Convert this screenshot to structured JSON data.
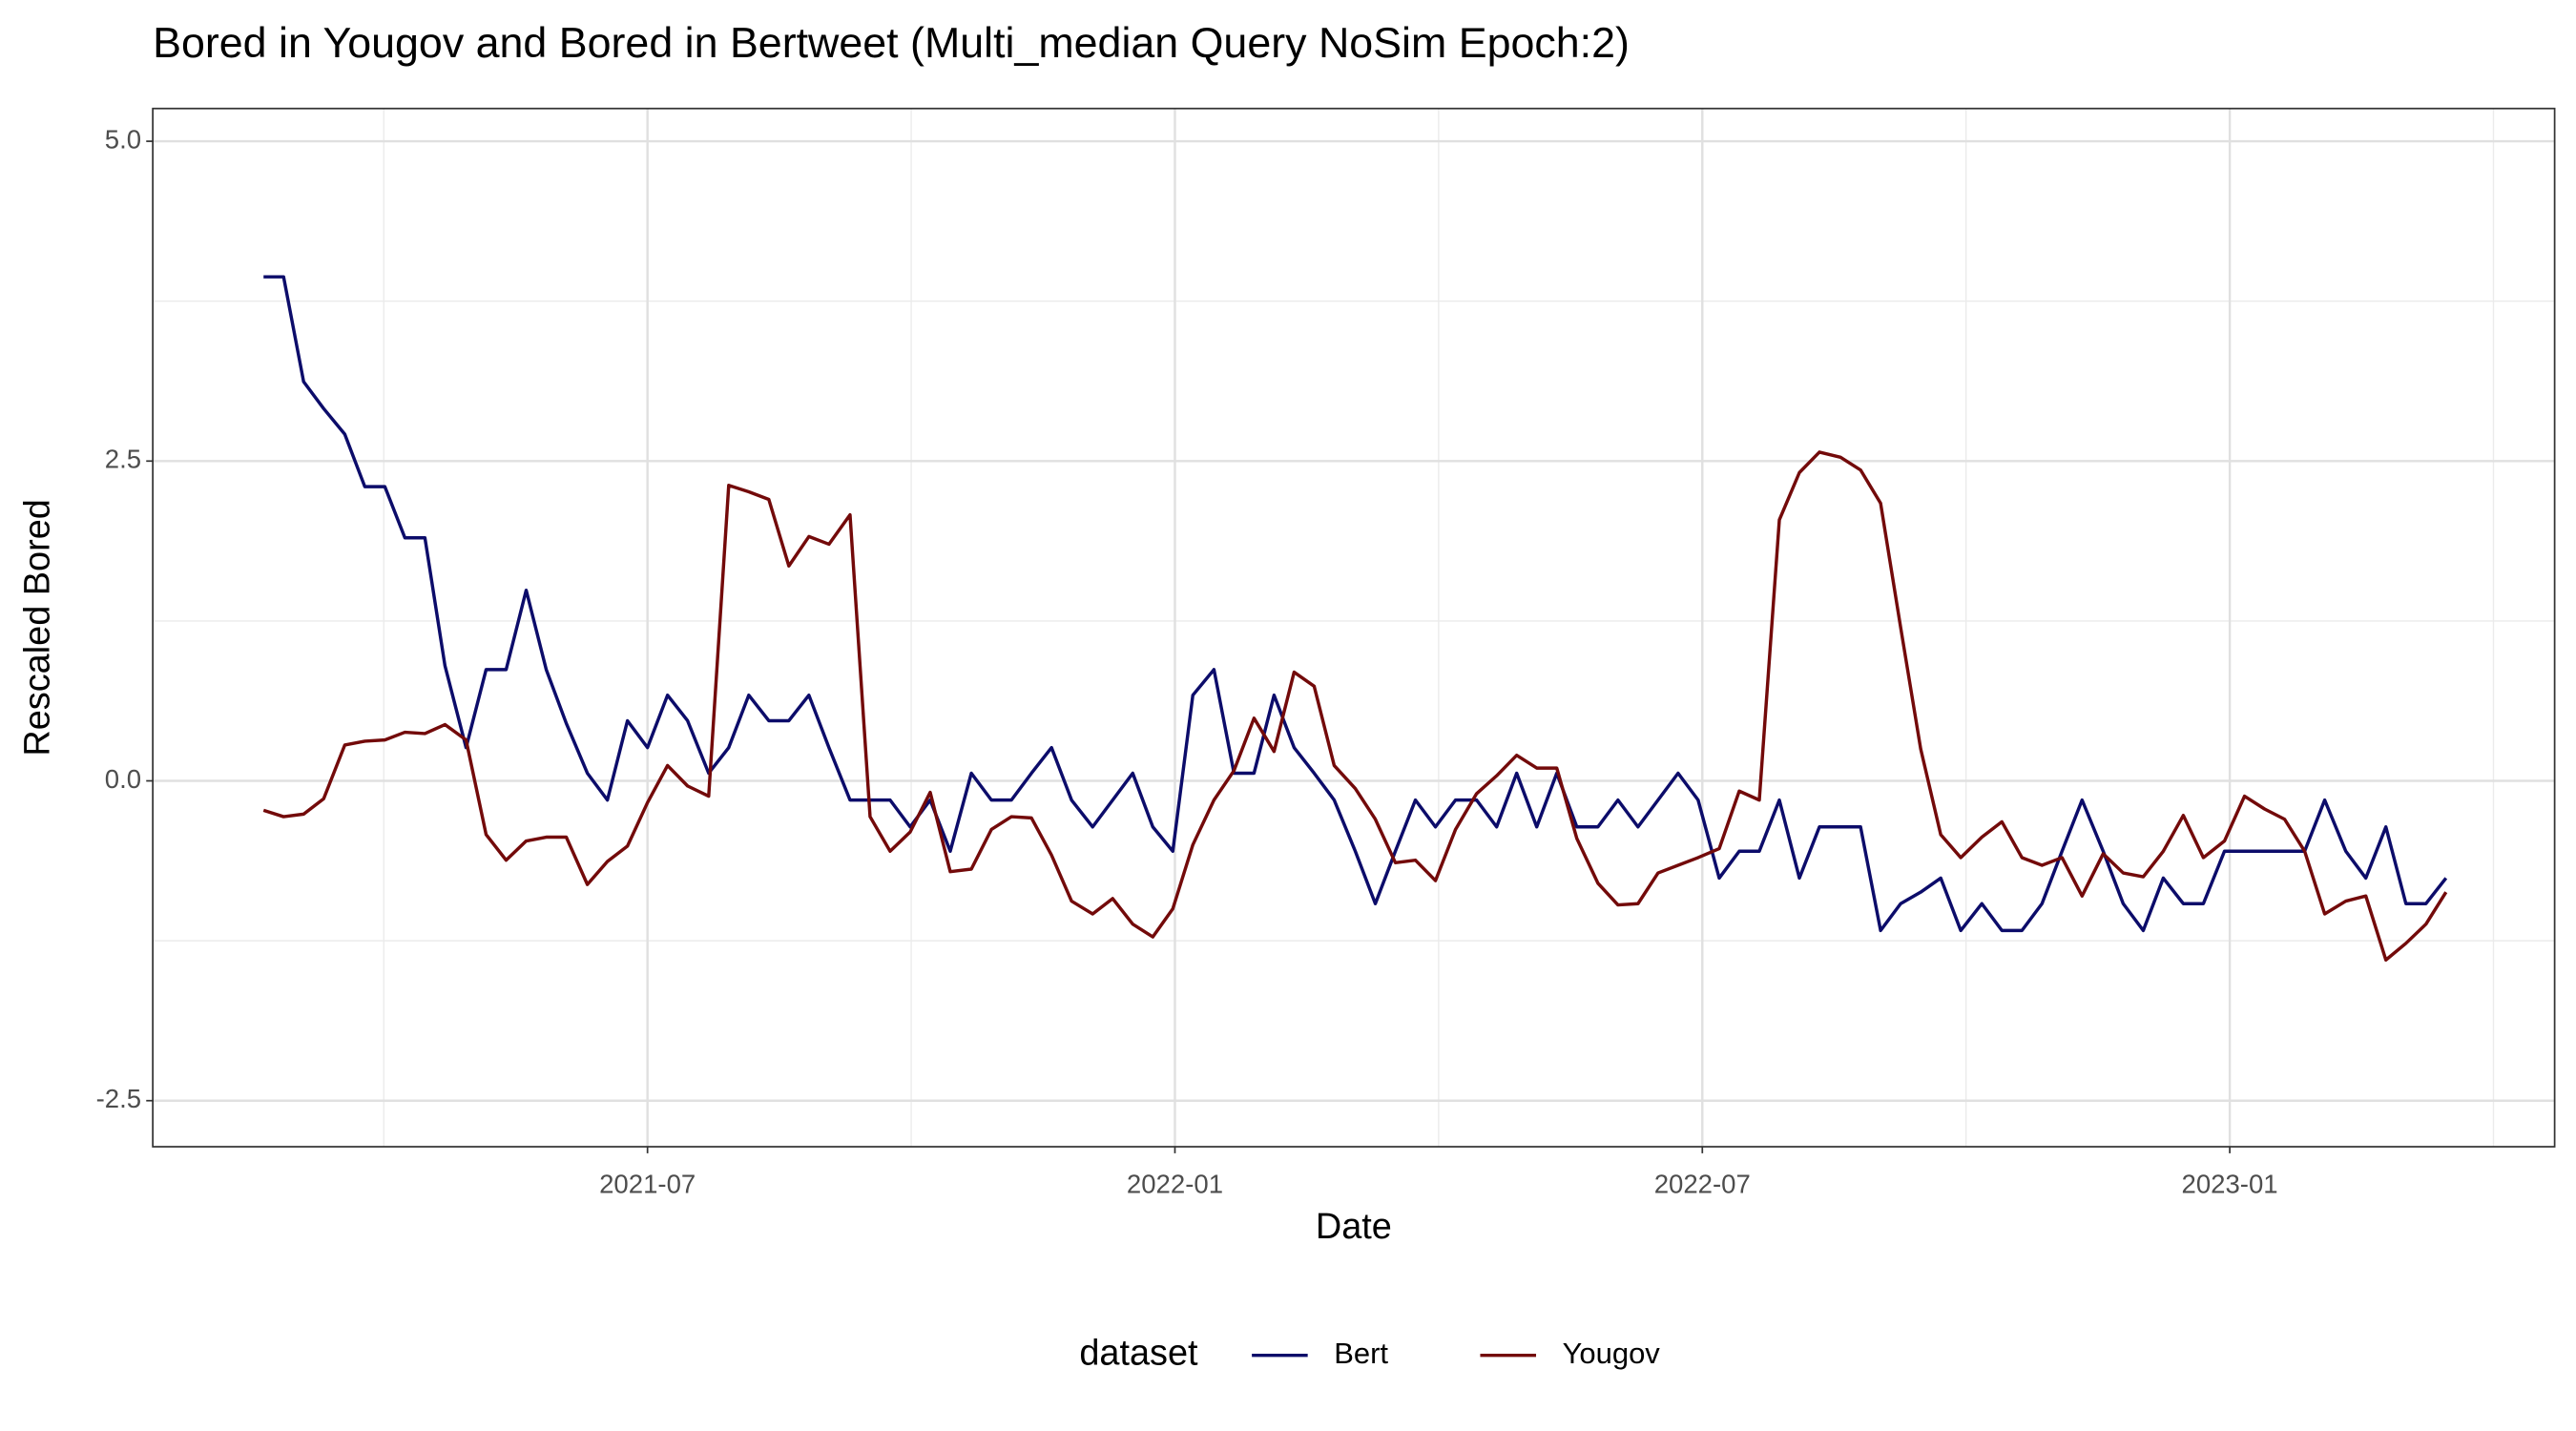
{
  "chart_data": {
    "type": "line",
    "title": "Bored in Yougov and Bored in Bertweet (Multi_median Query NoSim Epoch:2)",
    "x_label": "Date",
    "y_label": "Rescaled  Bored",
    "legend_title": "dataset",
    "legend_position": "bottom",
    "grid": true,
    "xlim": [
      2021.031,
      2023.308
    ],
    "ylim": [
      -2.86,
      5.256
    ],
    "xticks": [
      {
        "value": 2021.5,
        "label": "2021-07"
      },
      {
        "value": 2022.0,
        "label": "2022-01"
      },
      {
        "value": 2022.5,
        "label": "2022-07"
      },
      {
        "value": 2023.0,
        "label": "2023-01"
      }
    ],
    "yticks": [
      {
        "value": -2.5,
        "label": "-2.5"
      },
      {
        "value": 0,
        "label": "0.0"
      },
      {
        "value": 2.5,
        "label": "2.5"
      },
      {
        "value": 5,
        "label": "5.0"
      }
    ],
    "x": [
      2021.136,
      2021.155,
      2021.174,
      2021.193,
      2021.213,
      2021.232,
      2021.251,
      2021.27,
      2021.289,
      2021.308,
      2021.328,
      2021.347,
      2021.366,
      2021.385,
      2021.404,
      2021.423,
      2021.443,
      2021.462,
      2021.481,
      2021.5,
      2021.519,
      2021.538,
      2021.558,
      2021.577,
      2021.596,
      2021.615,
      2021.634,
      2021.653,
      2021.672,
      2021.692,
      2021.711,
      2021.73,
      2021.749,
      2021.768,
      2021.787,
      2021.807,
      2021.826,
      2021.845,
      2021.864,
      2021.883,
      2021.902,
      2021.922,
      2021.941,
      2021.96,
      2021.979,
      2021.998,
      2022.017,
      2022.037,
      2022.056,
      2022.075,
      2022.094,
      2022.113,
      2022.132,
      2022.151,
      2022.171,
      2022.19,
      2022.209,
      2022.228,
      2022.247,
      2022.266,
      2022.286,
      2022.305,
      2022.324,
      2022.343,
      2022.362,
      2022.381,
      2022.401,
      2022.42,
      2022.439,
      2022.458,
      2022.477,
      2022.496,
      2022.516,
      2022.535,
      2022.554,
      2022.573,
      2022.592,
      2022.611,
      2022.631,
      2022.65,
      2022.669,
      2022.688,
      2022.707,
      2022.726,
      2022.745,
      2022.765,
      2022.784,
      2022.803,
      2022.822,
      2022.841,
      2022.86,
      2022.88,
      2022.899,
      2022.918,
      2022.937,
      2022.956,
      2022.975,
      2022.995,
      2023.014,
      2023.033,
      2023.052,
      2023.071,
      2023.09,
      2023.11,
      2023.129,
      2023.148,
      2023.167,
      2023.186,
      2023.205
    ],
    "series": [
      {
        "name": "Bert",
        "color": "#0c0c6a",
        "values": [
          3.94,
          3.94,
          3.12,
          2.91,
          2.71,
          2.3,
          2.3,
          1.9,
          1.9,
          0.9,
          0.26,
          0.87,
          0.87,
          1.49,
          0.87,
          0.45,
          0.06,
          -0.15,
          0.47,
          0.26,
          0.67,
          0.47,
          0.06,
          0.26,
          0.67,
          0.47,
          0.47,
          0.67,
          0.26,
          -0.15,
          -0.15,
          -0.15,
          -0.36,
          -0.15,
          -0.55,
          0.06,
          -0.15,
          -0.15,
          0.06,
          0.26,
          -0.15,
          -0.36,
          -0.15,
          0.06,
          -0.36,
          -0.55,
          0.67,
          0.87,
          0.06,
          0.06,
          0.67,
          0.26,
          0.06,
          -0.15,
          -0.55,
          -0.96,
          -0.55,
          -0.15,
          -0.36,
          -0.15,
          -0.15,
          -0.36,
          0.06,
          -0.36,
          0.06,
          -0.36,
          -0.36,
          -0.15,
          -0.36,
          -0.15,
          0.06,
          -0.15,
          -0.76,
          -0.55,
          -0.55,
          -0.15,
          -0.76,
          -0.36,
          -0.36,
          -0.36,
          -1.17,
          -0.96,
          -0.87,
          -0.76,
          -1.17,
          -0.96,
          -1.17,
          -1.17,
          -0.96,
          -0.55,
          -0.15,
          -0.55,
          -0.96,
          -1.17,
          -0.76,
          -0.96,
          -0.96,
          -0.55,
          -0.55,
          -0.55,
          -0.55,
          -0.55,
          -0.15,
          -0.55,
          -0.76,
          -0.36,
          -0.96,
          -0.96,
          -0.76
        ]
      },
      {
        "name": "Yougov",
        "color": "#730a0a",
        "values": [
          -0.23,
          -0.28,
          -0.26,
          -0.14,
          0.28,
          0.31,
          0.32,
          0.38,
          0.37,
          0.44,
          0.32,
          -0.42,
          -0.62,
          -0.47,
          -0.44,
          -0.44,
          -0.81,
          -0.63,
          -0.51,
          -0.17,
          0.12,
          -0.04,
          -0.12,
          2.31,
          2.26,
          2.2,
          1.68,
          1.91,
          1.85,
          2.08,
          -0.28,
          -0.55,
          -0.4,
          -0.09,
          -0.71,
          -0.69,
          -0.38,
          -0.28,
          -0.29,
          -0.58,
          -0.94,
          -1.04,
          -0.92,
          -1.12,
          -1.22,
          -1.0,
          -0.5,
          -0.15,
          0.08,
          0.49,
          0.23,
          0.85,
          0.74,
          0.12,
          -0.06,
          -0.3,
          -0.64,
          -0.62,
          -0.78,
          -0.38,
          -0.1,
          0.04,
          0.2,
          0.1,
          0.1,
          -0.45,
          -0.8,
          -0.97,
          -0.96,
          -0.72,
          -0.66,
          -0.6,
          -0.53,
          -0.08,
          -0.15,
          2.04,
          2.41,
          2.57,
          2.53,
          2.43,
          2.17,
          1.2,
          0.25,
          -0.42,
          -0.6,
          -0.44,
          -0.32,
          -0.6,
          -0.66,
          -0.6,
          -0.9,
          -0.57,
          -0.72,
          -0.75,
          -0.55,
          -0.27,
          -0.6,
          -0.47,
          -0.12,
          -0.22,
          -0.3,
          -0.55,
          -1.04,
          -0.94,
          -0.9,
          -1.4,
          -1.27,
          -1.12,
          -0.87
        ]
      }
    ]
  }
}
